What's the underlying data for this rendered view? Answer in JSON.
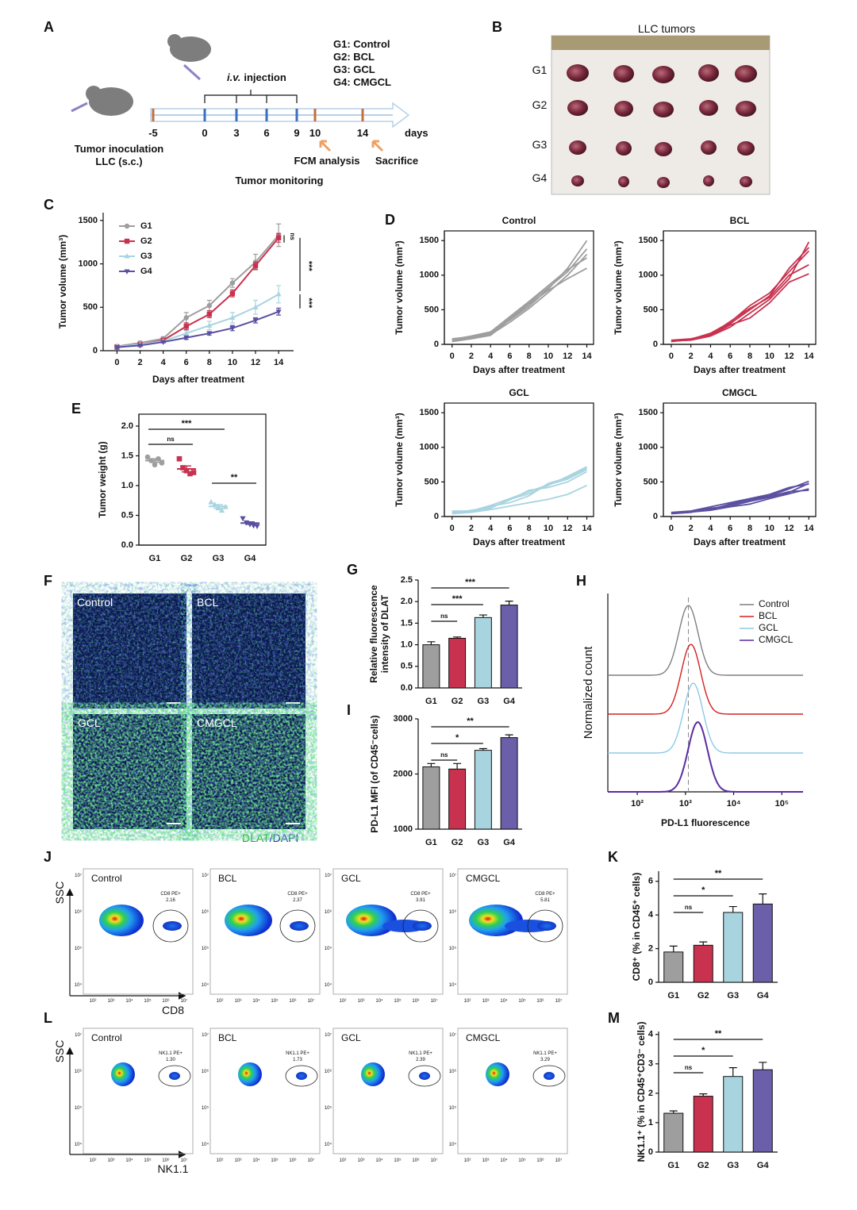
{
  "panel_letters": [
    "A",
    "B",
    "C",
    "D",
    "E",
    "F",
    "G",
    "H",
    "I",
    "J",
    "K",
    "L",
    "M"
  ],
  "schematic": {
    "groups": [
      "G1: Control",
      "G2: BCL",
      "G3: GCL",
      "G4: CMGCL"
    ],
    "injection_route": "i.v.",
    "injection": "injection",
    "timeline": [
      "-5",
      "0",
      "3",
      "6",
      "9",
      "10",
      "14"
    ],
    "days": "days",
    "inoculation": "Tumor inoculation",
    "inoculation_model": "LLC (s.c.)",
    "fcm": "FCM analysis",
    "sacrifice": "Sacrifice",
    "monitoring": "Tumor monitoring"
  },
  "photo": {
    "title": "LLC tumors",
    "rows": [
      "G1",
      "G2",
      "G3",
      "G4"
    ]
  },
  "micrographs": {
    "labels": [
      "Control",
      "BCL",
      "GCL",
      "CMGCL"
    ],
    "stain": "DLAT",
    "counterstain": "/DAPI"
  },
  "flow": {
    "xticks": [
      "10²",
      "10³",
      "10⁴",
      "10⁵",
      "10⁶",
      "10⁷"
    ],
    "yticks": [
      "10⁴",
      "10⁵",
      "10⁶",
      "10⁷"
    ],
    "cd8": {
      "ylabel": "SSC",
      "xlabel": "CD8",
      "groups": [
        "Control",
        "BCL",
        "GCL",
        "CMGCL"
      ],
      "gate": "CD8 PE+",
      "values": [
        "2.16",
        "2.37",
        "3.91",
        "5.81"
      ]
    },
    "nk": {
      "ylabel": "SSC",
      "xlabel": "NK1.1",
      "groups": [
        "Control",
        "BCL",
        "GCL",
        "CMGCL"
      ],
      "gate": "NK1.1 PE+",
      "values": [
        "1.30",
        "1.73",
        "2.39",
        "3.29"
      ]
    }
  },
  "chart_data": [
    {
      "type": "line",
      "ylabel": "Tumor volume (mm³)",
      "xlabel": "Days after treatment",
      "x": [
        0,
        2,
        4,
        6,
        8,
        10,
        12,
        14
      ],
      "xlim": [
        -1.2,
        15.3
      ],
      "xticks": [
        0,
        2,
        4,
        6,
        8,
        10,
        12,
        14
      ],
      "ylim": [
        0,
        1590
      ],
      "yticks": [
        0,
        500,
        1000,
        1500
      ],
      "legend": "upper left",
      "series": [
        {
          "name": "G1",
          "color": "#9e9e9e",
          "marker": "circle",
          "values": [
            50,
            90,
            140,
            380,
            520,
            780,
            1020,
            1330
          ],
          "errors": [
            20,
            20,
            20,
            60,
            60,
            50,
            90,
            130
          ]
        },
        {
          "name": "G2",
          "color": "#c8324f",
          "marker": "square",
          "values": [
            40,
            70,
            120,
            280,
            420,
            660,
            980,
            1300
          ],
          "errors": [
            10,
            10,
            15,
            40,
            40,
            40,
            40,
            50
          ]
        },
        {
          "name": "G3",
          "color": "#a8d4e0",
          "marker": "triangle",
          "values": [
            45,
            70,
            110,
            200,
            290,
            380,
            500,
            650
          ],
          "errors": [
            10,
            10,
            10,
            30,
            50,
            60,
            80,
            100
          ]
        },
        {
          "name": "G4",
          "color": "#5a4fa0",
          "marker": "triangle-down",
          "values": [
            40,
            60,
            100,
            150,
            200,
            260,
            350,
            450
          ],
          "errors": [
            10,
            10,
            10,
            20,
            20,
            30,
            30,
            40
          ]
        }
      ],
      "comparisons": [
        {
          "label": "ns",
          "from": "G1",
          "to": "G2"
        },
        {
          "label": "***",
          "from": "G2",
          "to": "G3"
        },
        {
          "label": "***",
          "from": "G3",
          "to": "G4"
        }
      ]
    },
    {
      "type": "multiline",
      "title": "Control",
      "ylabel": "Tumor volume (mm³)",
      "xlabel": "Days after treatment",
      "x": [
        0,
        2,
        4,
        6,
        8,
        10,
        12,
        14
      ],
      "xlim": [
        -0.8,
        14.7
      ],
      "xticks": [
        0,
        2,
        4,
        6,
        8,
        10,
        12,
        14
      ],
      "ylim": [
        0,
        1640
      ],
      "yticks": [
        0,
        500,
        1000,
        1500
      ],
      "color": "#9e9e9e",
      "lines": [
        [
          80,
          110,
          170,
          350,
          550,
          800,
          1100,
          1500
        ],
        [
          60,
          100,
          150,
          380,
          600,
          820,
          1050,
          1380
        ],
        [
          50,
          90,
          140,
          320,
          520,
          750,
          1000,
          1300
        ],
        [
          40,
          80,
          130,
          360,
          580,
          780,
          950,
          1100
        ],
        [
          70,
          120,
          180,
          400,
          620,
          850,
          1080,
          1250
        ]
      ]
    },
    {
      "type": "multiline",
      "title": "BCL",
      "ylabel": "Tumor volume (mm³)",
      "xlabel": "Days after treatment",
      "x": [
        0,
        2,
        4,
        6,
        8,
        10,
        12,
        14
      ],
      "xlim": [
        -0.8,
        14.7
      ],
      "xticks": [
        0,
        2,
        4,
        6,
        8,
        10,
        12,
        14
      ],
      "ylim": [
        0,
        1640
      ],
      "yticks": [
        0,
        500,
        1000,
        1500
      ],
      "color": "#c8324f",
      "lines": [
        [
          50,
          60,
          120,
          250,
          450,
          650,
          950,
          1480
        ],
        [
          40,
          70,
          150,
          300,
          500,
          700,
          1100,
          1400
        ],
        [
          60,
          80,
          140,
          330,
          520,
          680,
          1000,
          1150
        ],
        [
          45,
          65,
          130,
          280,
          380,
          600,
          900,
          1020
        ],
        [
          55,
          75,
          160,
          320,
          560,
          740,
          1050,
          1350
        ]
      ]
    },
    {
      "type": "multiline",
      "title": "GCL",
      "ylabel": "Tumor volume (mm³)",
      "xlabel": "Days after treatment",
      "x": [
        0,
        2,
        4,
        6,
        8,
        10,
        12,
        14
      ],
      "xlim": [
        -0.8,
        14.7
      ],
      "xticks": [
        0,
        2,
        4,
        6,
        8,
        10,
        12,
        14
      ],
      "ylim": [
        0,
        1640
      ],
      "yticks": [
        0,
        500,
        1000,
        1500
      ],
      "color": "#a8d4e0",
      "lines": [
        [
          80,
          80,
          120,
          250,
          330,
          450,
          580,
          720
        ],
        [
          60,
          70,
          150,
          200,
          300,
          480,
          560,
          700
        ],
        [
          50,
          90,
          130,
          240,
          380,
          420,
          500,
          650
        ],
        [
          40,
          60,
          100,
          150,
          200,
          250,
          320,
          450
        ],
        [
          70,
          80,
          160,
          260,
          360,
          460,
          540,
          680
        ]
      ]
    },
    {
      "type": "multiline",
      "title": "CMGCL",
      "ylabel": "Tumor volume (mm³)",
      "xlabel": "Days after treatment",
      "x": [
        0,
        2,
        4,
        6,
        8,
        10,
        12,
        14
      ],
      "xlim": [
        -0.8,
        14.7
      ],
      "xticks": [
        0,
        2,
        4,
        6,
        8,
        10,
        12,
        14
      ],
      "ylim": [
        0,
        1640
      ],
      "yticks": [
        0,
        500,
        1000,
        1500
      ],
      "color": "#5a4fa0",
      "lines": [
        [
          50,
          70,
          100,
          180,
          250,
          300,
          400,
          510
        ],
        [
          40,
          60,
          120,
          150,
          220,
          280,
          350,
          480
        ],
        [
          60,
          80,
          140,
          200,
          260,
          320,
          420,
          470
        ],
        [
          45,
          65,
          90,
          140,
          180,
          260,
          330,
          400
        ],
        [
          55,
          75,
          110,
          170,
          240,
          290,
          360,
          380
        ]
      ]
    },
    {
      "type": "dot",
      "ylabel": "Tumor weight (g)",
      "categories": [
        "G1",
        "G2",
        "G3",
        "G4"
      ],
      "points": [
        [
          1.48,
          1.42,
          1.35,
          1.45,
          1.38
        ],
        [
          1.45,
          1.3,
          1.25,
          1.2,
          1.22
        ],
        [
          0.72,
          0.68,
          0.62,
          0.58,
          0.64
        ],
        [
          0.45,
          0.38,
          0.35,
          0.33,
          0.32
        ]
      ],
      "means": [
        1.42,
        1.28,
        0.65,
        0.37
      ],
      "errors": [
        0.03,
        0.05,
        0.03,
        0.02
      ],
      "colors": [
        "#9e9e9e",
        "#c8324f",
        "#a8d4e0",
        "#5a4fa0"
      ],
      "markers": [
        "circle",
        "square",
        "triangle",
        "triangle-down"
      ],
      "ylim": [
        0,
        2.2
      ],
      "yticks": [
        {
          "value": 0,
          "label": "0.0"
        },
        0.5,
        {
          "value": 1,
          "label": "1.0"
        },
        1.5,
        {
          "value": 2,
          "label": "2.0"
        }
      ],
      "comparisons": [
        {
          "label": "***",
          "from": "G1",
          "to": "G3"
        },
        {
          "label": "ns",
          "from": "G1",
          "to": "G2"
        },
        {
          "label": "**",
          "from": "G3",
          "to": "G4"
        }
      ]
    },
    {
      "type": "bar",
      "ylabel": [
        "Relative fluorescence",
        "intensity of DLAT"
      ],
      "categories": [
        "G1",
        "G2",
        "G3",
        "G4"
      ],
      "values": [
        1.0,
        1.15,
        1.63,
        1.92
      ],
      "errors": [
        0.07,
        0.03,
        0.06,
        0.09
      ],
      "colors": [
        "#9e9e9e",
        "#c8324f",
        "#a8d4e0",
        "#6a5fa8"
      ],
      "ylim": [
        0,
        2.5
      ],
      "yticks": [
        {
          "value": 0,
          "label": "0.0"
        },
        0.5,
        {
          "value": 1,
          "label": "1.0"
        },
        1.5,
        {
          "value": 2,
          "label": "2.0"
        },
        2.5
      ],
      "comparisons": [
        {
          "label": "ns",
          "from": "G1",
          "to": "G2"
        },
        {
          "label": "***",
          "from": "G1",
          "to": "G3"
        },
        {
          "label": "***",
          "from": "G1",
          "to": "G4"
        }
      ]
    },
    {
      "type": "bar",
      "ylabel": "PD-L1 MFI (of CD45⁻cells)",
      "categories": [
        "G1",
        "G2",
        "G3",
        "G4"
      ],
      "values": [
        2130,
        2090,
        2430,
        2660
      ],
      "errors": [
        60,
        100,
        30,
        50
      ],
      "colors": [
        "#9e9e9e",
        "#c8324f",
        "#a8d4e0",
        "#6a5fa8"
      ],
      "ylim": [
        1000,
        3000
      ],
      "yticks": [
        1000,
        2000,
        3000
      ],
      "comparisons": [
        {
          "label": "ns",
          "from": "G1",
          "to": "G2"
        },
        {
          "label": "*",
          "from": "G1",
          "to": "G3"
        },
        {
          "label": "**",
          "from": "G1",
          "to": "G4"
        }
      ]
    },
    {
      "type": "density",
      "xlabel": "PD-L1 fluorescence",
      "ylabel": "Normalized count",
      "log": true,
      "xlim": [
        24.5,
        275000
      ],
      "xticks": [
        {
          "value": 100,
          "label": "10²"
        },
        {
          "value": 1000,
          "label": "10³"
        },
        {
          "value": 10000,
          "label": "10⁴"
        },
        {
          "value": 100000,
          "label": "10⁵"
        }
      ],
      "legend": "upper right",
      "series": [
        {
          "name": "Control",
          "color": "#7f7f7f",
          "peak": 1150
        },
        {
          "name": "BCL",
          "color": "#d42020",
          "peak": 1300
        },
        {
          "name": "GCL",
          "color": "#8ec8e8",
          "peak": 1450
        },
        {
          "name": "CMGCL",
          "color": "#5a2ca0",
          "peak": 1800
        }
      ]
    },
    {
      "type": "bar",
      "ylabel": "CD8⁺ (% in CD45⁺ cells)",
      "categories": [
        "G1",
        "G2",
        "G3",
        "G4"
      ],
      "values": [
        1.8,
        2.2,
        4.15,
        4.65
      ],
      "errors": [
        0.35,
        0.2,
        0.35,
        0.6
      ],
      "colors": [
        "#9e9e9e",
        "#c8324f",
        "#a8d4e0",
        "#6a5fa8"
      ],
      "ylim": [
        0,
        6.6
      ],
      "yticks": [
        0,
        2,
        4,
        6
      ],
      "comparisons": [
        {
          "label": "ns",
          "from": "G1",
          "to": "G2"
        },
        {
          "label": "*",
          "from": "G1",
          "to": "G3"
        },
        {
          "label": "**",
          "from": "G1",
          "to": "G4"
        }
      ]
    },
    {
      "type": "bar",
      "ylabel": "NK1.1⁺ (% in CD45⁺CD3⁻ cells)",
      "categories": [
        "G1",
        "G2",
        "G3",
        "G4"
      ],
      "values": [
        1.32,
        1.9,
        2.57,
        2.8
      ],
      "errors": [
        0.08,
        0.08,
        0.3,
        0.25
      ],
      "colors": [
        "#9e9e9e",
        "#c8324f",
        "#a8d4e0",
        "#6a5fa8"
      ],
      "ylim": [
        0,
        4.1
      ],
      "yticks": [
        0,
        1,
        2,
        3,
        4
      ],
      "comparisons": [
        {
          "label": "ns",
          "from": "G1",
          "to": "G2"
        },
        {
          "label": "*",
          "from": "G1",
          "to": "G3"
        },
        {
          "label": "**",
          "from": "G1",
          "to": "G4"
        }
      ]
    }
  ]
}
